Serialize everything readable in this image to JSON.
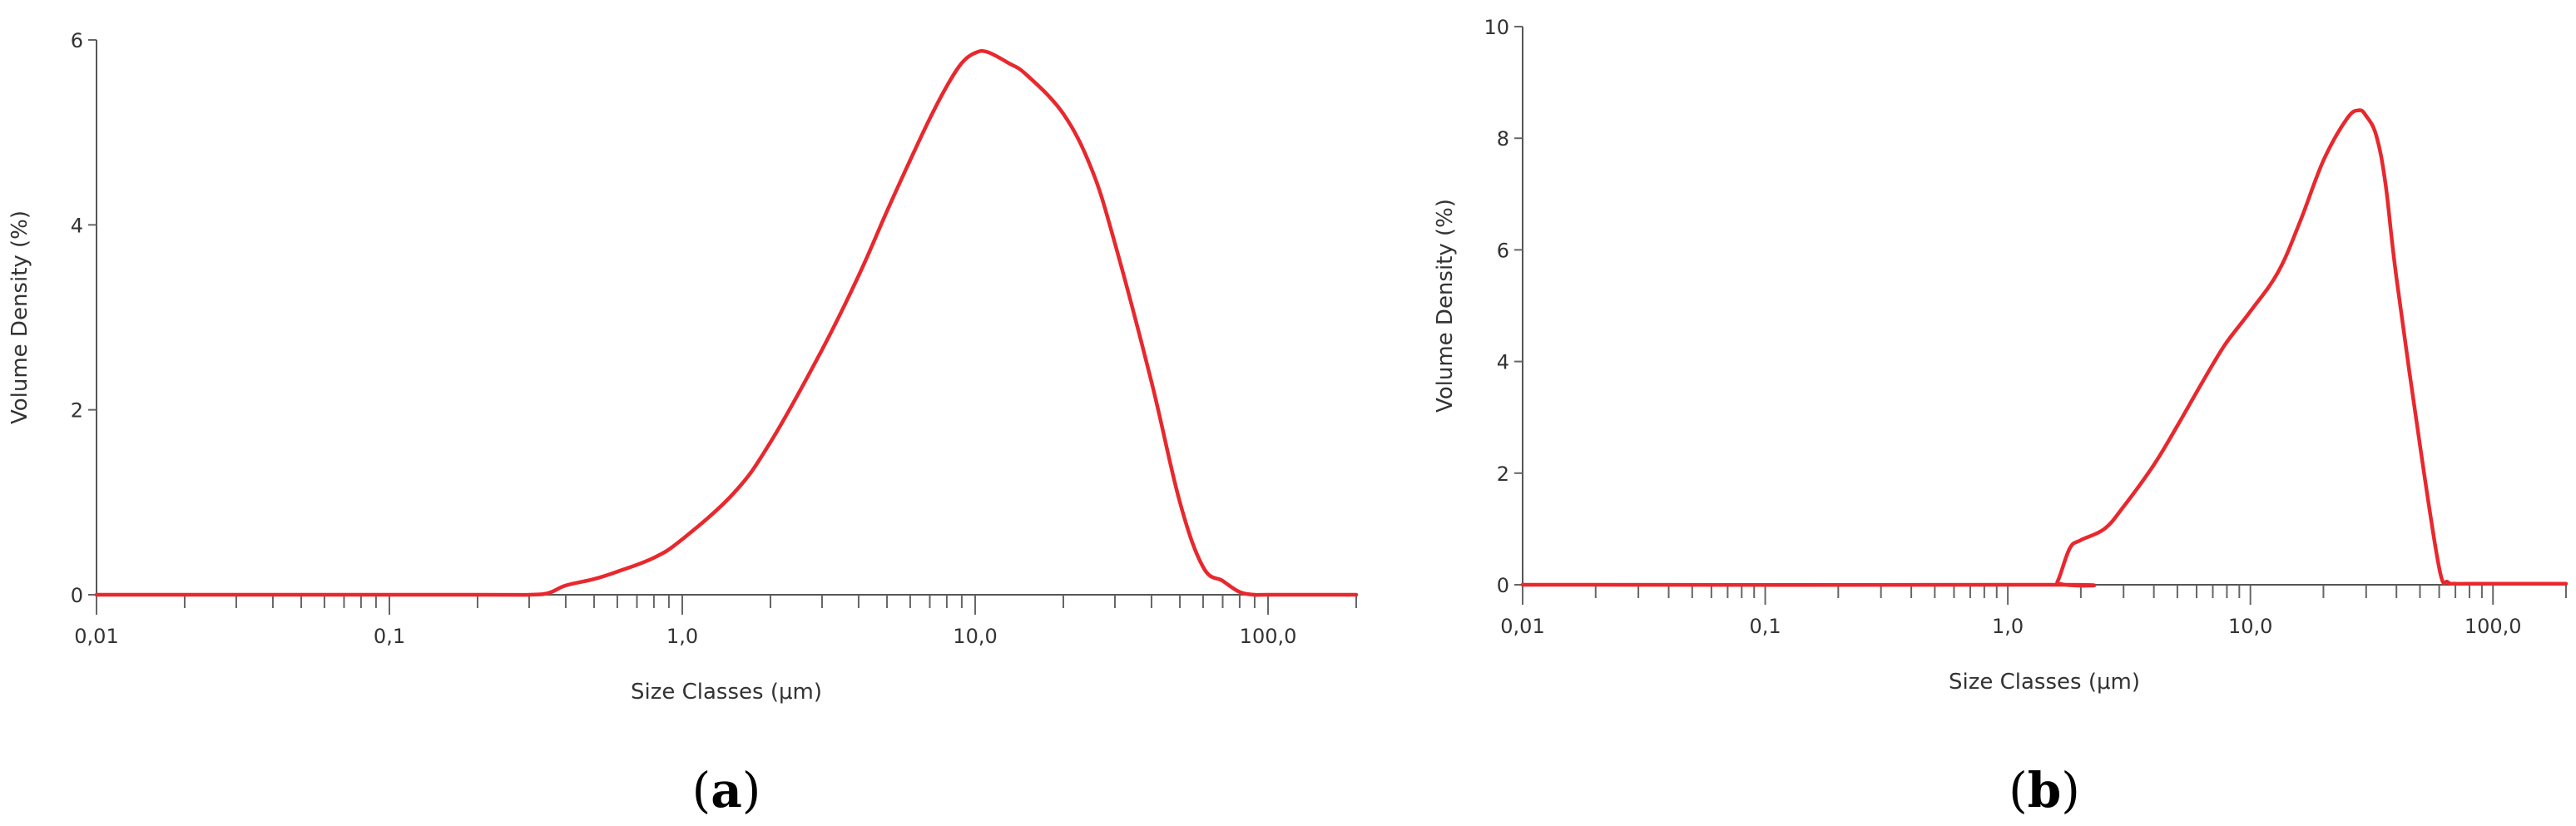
{
  "line_color": "#e8282d",
  "chart_data": [
    {
      "type": "line",
      "panel_label": "(a)",
      "panel_letter": "a",
      "xlabel": "Size Classes (μm)",
      "ylabel": "Volume Density (%)",
      "xscale": "log",
      "xlim": [
        0.01,
        200
      ],
      "ylim": [
        0,
        6
      ],
      "yticks": [
        0,
        2,
        4,
        6
      ],
      "ytick_labels": [
        "0",
        "2",
        "4",
        "6"
      ],
      "xticks_major": [
        0.01,
        0.1,
        1,
        10,
        100
      ],
      "xtick_labels": [
        "0,01",
        "0,1",
        "1,0",
        "10,0",
        "100,0"
      ],
      "series": [
        {
          "name": "Volume Density",
          "x": [
            0.01,
            0.2,
            0.3,
            0.35,
            0.4,
            0.5,
            0.6,
            0.8,
            1.0,
            1.5,
            2,
            3,
            4,
            5,
            6,
            7,
            8,
            9,
            10,
            11,
            13,
            15,
            20,
            25,
            30,
            40,
            50,
            60,
            70,
            80,
            90,
            100,
            200
          ],
          "y": [
            0,
            0,
            0,
            0.02,
            0.1,
            0.17,
            0.25,
            0.4,
            0.6,
            1.1,
            1.65,
            2.65,
            3.45,
            4.15,
            4.7,
            5.15,
            5.5,
            5.75,
            5.86,
            5.87,
            5.75,
            5.62,
            5.2,
            4.6,
            3.8,
            2.3,
            1.0,
            0.3,
            0.15,
            0.03,
            0,
            0,
            0
          ]
        }
      ]
    },
    {
      "type": "line",
      "panel_label": "(b)",
      "panel_letter": "b",
      "xlabel": "Size Classes (μm)",
      "ylabel": "Volume Density (%)",
      "xscale": "log",
      "xlim": [
        0.01,
        200
      ],
      "ylim": [
        0,
        10
      ],
      "yticks": [
        0,
        2,
        4,
        6,
        8,
        10
      ],
      "ytick_labels": [
        "0",
        "2",
        "4",
        "6",
        "8",
        "10"
      ],
      "xticks_major": [
        0.01,
        0.1,
        1,
        10,
        100
      ],
      "xtick_labels": [
        "0,01",
        "0,1",
        "1,0",
        "10,0",
        "100,0"
      ],
      "series": [
        {
          "name": "Volume Density",
          "x": [
            0.01,
            1.5,
            1.6,
            1.8,
            2.0,
            2.5,
            3,
            4,
            5,
            6,
            7,
            8,
            10,
            13,
            16,
            20,
            25,
            28,
            30,
            33,
            36,
            40,
            50,
            60,
            65,
            70,
            80,
            200
          ],
          "y": [
            0,
            0,
            0.05,
            0.65,
            0.8,
            1.0,
            1.4,
            2.15,
            2.85,
            3.45,
            3.95,
            4.35,
            4.9,
            5.6,
            6.5,
            7.6,
            8.35,
            8.5,
            8.4,
            8.05,
            7.2,
            5.5,
            2.5,
            0.3,
            0.05,
            0.02,
            0.02,
            0.02
          ]
        }
      ]
    }
  ]
}
